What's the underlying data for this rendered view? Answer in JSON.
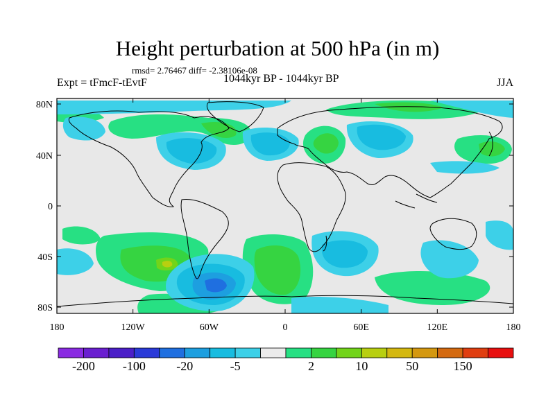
{
  "title": "Height perturbation at 500 hPa (in m)",
  "rmsd_line": "rmsd= 2.76467 diff= -2.38106e-08",
  "experiment": "Expt = tFmcF-tEvtF",
  "period": "1044kyr BP - 1044kyr BP",
  "season": "JJA",
  "map": {
    "projection": "cylindrical-equidistant",
    "lat_ticks": [
      "80N",
      "40N",
      "0",
      "40S",
      "80S"
    ],
    "lon_ticks": [
      "180",
      "120W",
      "60W",
      "0",
      "60E",
      "120E",
      "180"
    ],
    "background_fill": "#e8e8e8"
  },
  "colorbar": {
    "colors": [
      "#8a2be2",
      "#6a1fd0",
      "#4b1fc8",
      "#2a3ad8",
      "#1f6fe0",
      "#1d9fe0",
      "#18bce0",
      "#3dd0e8",
      "#ebebeb",
      "#27e083",
      "#36d441",
      "#72d41a",
      "#b8cf10",
      "#d4b810",
      "#d49810",
      "#d46a10",
      "#e03e10",
      "#e80f0f"
    ],
    "labels": [
      "-200",
      "-100",
      "-20",
      "-5",
      "2",
      "10",
      "50",
      "150"
    ]
  }
}
